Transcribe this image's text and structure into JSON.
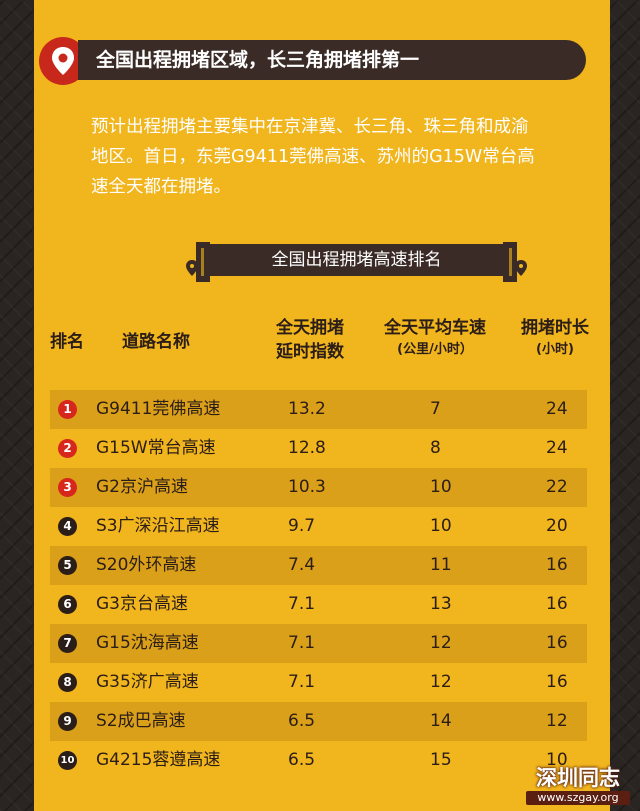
{
  "title": "全国出程拥堵区域，长三角拥堵排第一",
  "intro_lines": [
    "预计出程拥堵主要集中在京津冀、长三角、珠三角和成渝",
    "地区。首日，东莞G9411莞佛高速、苏州的G15W常台高",
    "速全天都在拥堵。"
  ],
  "section_title": "全国出程拥堵高速排名",
  "headers": {
    "rank": "排名",
    "road": "道路名称",
    "index_line1": "全天拥堵",
    "index_line2": "延时指数",
    "speed_line1": "全天平均车速",
    "speed_line2": "(公里/小时）",
    "time_line1": "拥堵时长",
    "time_line2": "(小时)"
  },
  "rows": [
    {
      "rank": "1",
      "road": "G9411莞佛高速",
      "index": "13.2",
      "speed": "7",
      "hours": "24"
    },
    {
      "rank": "2",
      "road": "G15W常台高速",
      "index": "12.8",
      "speed": "8",
      "hours": "24"
    },
    {
      "rank": "3",
      "road": "G2京沪高速",
      "index": "10.3",
      "speed": "10",
      "hours": "22"
    },
    {
      "rank": "4",
      "road": "S3广深沿江高速",
      "index": "9.7",
      "speed": "10",
      "hours": "20"
    },
    {
      "rank": "5",
      "road": "S20外环高速",
      "index": "7.4",
      "speed": "11",
      "hours": "16"
    },
    {
      "rank": "6",
      "road": "G3京台高速",
      "index": "7.1",
      "speed": "13",
      "hours": "16"
    },
    {
      "rank": "7",
      "road": "G15沈海高速",
      "index": "7.1",
      "speed": "12",
      "hours": "16"
    },
    {
      "rank": "8",
      "road": "G35济广高速",
      "index": "7.1",
      "speed": "12",
      "hours": "16"
    },
    {
      "rank": "9",
      "road": "S2成巴高速",
      "index": "6.5",
      "speed": "14",
      "hours": "12"
    },
    {
      "rank": "10",
      "road": "G4215蓉遵高速",
      "index": "6.5",
      "speed": "15",
      "hours": "10"
    }
  ],
  "watermark": {
    "name": "深圳同志",
    "url": "www.szgay.org"
  },
  "colors": {
    "card": "#f1b51d",
    "row_stripe": "#dba019",
    "banner": "#3a2b27",
    "rank_red": "#d7261c",
    "rank_dark": "#2b1d17"
  }
}
